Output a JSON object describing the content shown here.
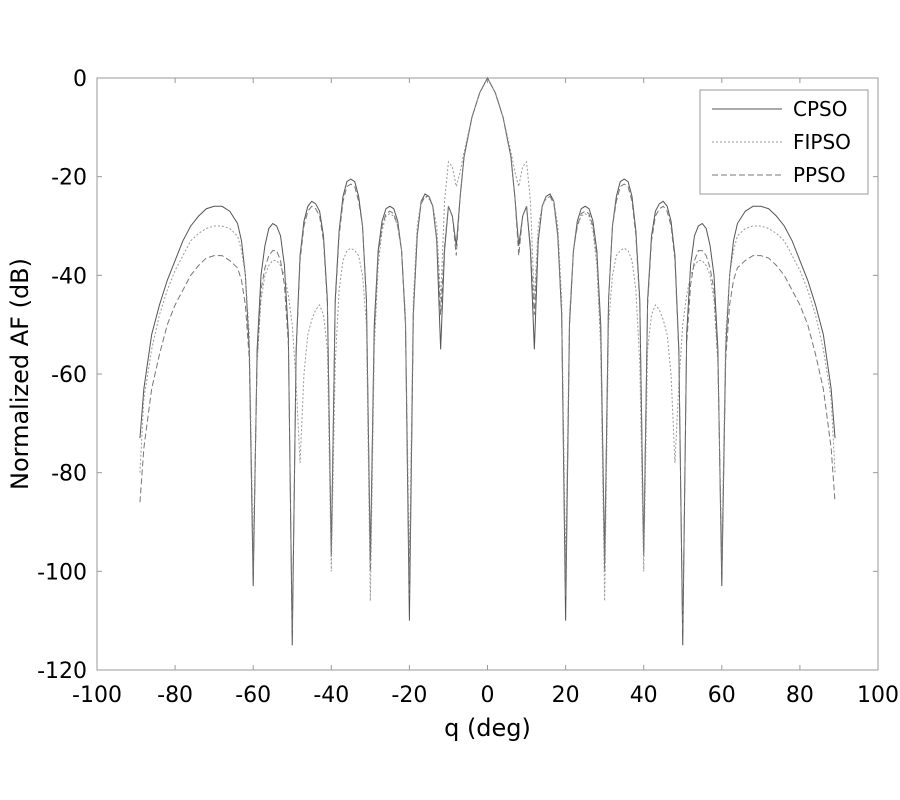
{
  "chart_data": {
    "type": "line",
    "title": "",
    "xlabel": "q (deg)",
    "ylabel": "Normalized AF (dB)",
    "xlim": [
      -100,
      100
    ],
    "ylim": [
      -120,
      0
    ],
    "xticks": [
      -100,
      -80,
      -60,
      -40,
      -20,
      0,
      20,
      40,
      60,
      80,
      100
    ],
    "yticks": [
      0,
      -20,
      -40,
      -60,
      -80,
      -100,
      -120
    ],
    "xtick_labels": [
      "-100",
      "-80",
      "-60",
      "-40",
      "-20",
      "0",
      "20",
      "40",
      "60",
      "80",
      "100"
    ],
    "ytick_labels": [
      "0",
      "-20",
      "-40",
      "-60",
      "-80",
      "-100",
      "-120"
    ],
    "grid": false,
    "legend": "top-right",
    "series": [
      {
        "name": "CPSO",
        "color": "#555555",
        "dash": "",
        "points": [
          [
            0,
            0
          ],
          [
            2,
            -3
          ],
          [
            4,
            -8
          ],
          [
            6,
            -16
          ],
          [
            7,
            -24
          ],
          [
            8,
            -34
          ],
          [
            9,
            -28
          ],
          [
            10,
            -26
          ],
          [
            11,
            -35
          ],
          [
            12,
            -55
          ],
          [
            13,
            -33
          ],
          [
            14,
            -26
          ],
          [
            15,
            -24
          ],
          [
            16,
            -23.5
          ],
          [
            17,
            -25
          ],
          [
            18,
            -32
          ],
          [
            19,
            -48
          ],
          [
            20,
            -110
          ],
          [
            21,
            -50
          ],
          [
            22,
            -35
          ],
          [
            23,
            -29
          ],
          [
            24,
            -26.5
          ],
          [
            25,
            -26
          ],
          [
            26,
            -26.5
          ],
          [
            27,
            -29
          ],
          [
            28,
            -35
          ],
          [
            29,
            -50
          ],
          [
            30,
            -98
          ],
          [
            31,
            -45
          ],
          [
            32,
            -30
          ],
          [
            33,
            -24
          ],
          [
            34,
            -21
          ],
          [
            35,
            -20.5
          ],
          [
            36,
            -21
          ],
          [
            37,
            -24
          ],
          [
            38,
            -31
          ],
          [
            39,
            -45
          ],
          [
            40,
            -97
          ],
          [
            41,
            -45
          ],
          [
            42,
            -32
          ],
          [
            43,
            -27
          ],
          [
            44,
            -25.5
          ],
          [
            45,
            -25
          ],
          [
            46,
            -26
          ],
          [
            47,
            -29
          ],
          [
            48,
            -36
          ],
          [
            49,
            -55
          ],
          [
            50,
            -115
          ],
          [
            51,
            -52
          ],
          [
            52,
            -38
          ],
          [
            53,
            -32
          ],
          [
            54,
            -30
          ],
          [
            55,
            -29.5
          ],
          [
            56,
            -30.5
          ],
          [
            57,
            -34
          ],
          [
            58,
            -40
          ],
          [
            59,
            -55
          ],
          [
            60,
            -103
          ],
          [
            61,
            -55
          ],
          [
            62,
            -40
          ],
          [
            63,
            -33
          ],
          [
            64,
            -29.5
          ],
          [
            66,
            -27
          ],
          [
            68,
            -26
          ],
          [
            70,
            -26
          ],
          [
            72,
            -26.5
          ],
          [
            74,
            -28
          ],
          [
            76,
            -30
          ],
          [
            78,
            -33
          ],
          [
            80,
            -37
          ],
          [
            82,
            -41
          ],
          [
            84,
            -46
          ],
          [
            86,
            -52
          ],
          [
            88,
            -63
          ],
          [
            89,
            -73
          ]
        ]
      },
      {
        "name": "FIPSO",
        "color": "#999999",
        "dash": "2,2",
        "points": [
          [
            0,
            0
          ],
          [
            2,
            -3
          ],
          [
            4,
            -8
          ],
          [
            6,
            -15
          ],
          [
            7,
            -19
          ],
          [
            8,
            -22
          ],
          [
            9,
            -18
          ],
          [
            10,
            -17
          ],
          [
            11,
            -25
          ],
          [
            12,
            -45
          ],
          [
            13,
            -30
          ],
          [
            14,
            -26
          ],
          [
            15,
            -24.5
          ],
          [
            16,
            -24
          ],
          [
            17,
            -25
          ],
          [
            18,
            -30
          ],
          [
            19,
            -45
          ],
          [
            20,
            -100
          ],
          [
            21,
            -48
          ],
          [
            22,
            -35
          ],
          [
            23,
            -30
          ],
          [
            24,
            -28
          ],
          [
            25,
            -27.5
          ],
          [
            26,
            -28
          ],
          [
            27,
            -31
          ],
          [
            28,
            -38
          ],
          [
            29,
            -55
          ],
          [
            30,
            -106
          ],
          [
            31,
            -50
          ],
          [
            32,
            -40
          ],
          [
            33,
            -36
          ],
          [
            34,
            -35
          ],
          [
            35,
            -34.5
          ],
          [
            36,
            -35
          ],
          [
            37,
            -37
          ],
          [
            38,
            -43
          ],
          [
            39,
            -58
          ],
          [
            40,
            -100
          ],
          [
            41,
            -55
          ],
          [
            42,
            -48
          ],
          [
            43,
            -46
          ],
          [
            44,
            -47
          ],
          [
            45,
            -49
          ],
          [
            46,
            -52
          ],
          [
            47,
            -60
          ],
          [
            48,
            -78
          ],
          [
            49,
            -62
          ],
          [
            50,
            -50
          ],
          [
            51,
            -44
          ],
          [
            52,
            -40
          ],
          [
            53,
            -38
          ],
          [
            54,
            -37
          ],
          [
            55,
            -37
          ],
          [
            56,
            -38
          ],
          [
            57,
            -40
          ],
          [
            58,
            -45
          ],
          [
            59,
            -58
          ],
          [
            60,
            -97
          ],
          [
            61,
            -52
          ],
          [
            62,
            -40
          ],
          [
            63,
            -35
          ],
          [
            64,
            -32
          ],
          [
            66,
            -30.5
          ],
          [
            68,
            -30
          ],
          [
            70,
            -30
          ],
          [
            72,
            -30.5
          ],
          [
            74,
            -31.5
          ],
          [
            76,
            -33
          ],
          [
            78,
            -36
          ],
          [
            80,
            -39
          ],
          [
            82,
            -43
          ],
          [
            84,
            -48
          ],
          [
            86,
            -55
          ],
          [
            88,
            -65
          ],
          [
            89,
            -80
          ]
        ]
      },
      {
        "name": "PPSO",
        "color": "#777777",
        "dash": "6,3",
        "points": [
          [
            0,
            0
          ],
          [
            2,
            -3
          ],
          [
            4,
            -8
          ],
          [
            6,
            -16
          ],
          [
            7,
            -24
          ],
          [
            8,
            -36
          ],
          [
            9,
            -28
          ],
          [
            10,
            -26
          ],
          [
            11,
            -34
          ],
          [
            12,
            -48
          ],
          [
            13,
            -33
          ],
          [
            14,
            -26
          ],
          [
            15,
            -24
          ],
          [
            16,
            -24
          ],
          [
            17,
            -25.5
          ],
          [
            18,
            -32
          ],
          [
            19,
            -48
          ],
          [
            20,
            -105
          ],
          [
            21,
            -50
          ],
          [
            22,
            -35
          ],
          [
            23,
            -30
          ],
          [
            24,
            -27.5
          ],
          [
            25,
            -27
          ],
          [
            26,
            -27.5
          ],
          [
            27,
            -30
          ],
          [
            28,
            -36
          ],
          [
            29,
            -52
          ],
          [
            30,
            -100
          ],
          [
            31,
            -45
          ],
          [
            32,
            -30
          ],
          [
            33,
            -25
          ],
          [
            34,
            -22
          ],
          [
            35,
            -21.5
          ],
          [
            36,
            -22
          ],
          [
            37,
            -25
          ],
          [
            38,
            -32
          ],
          [
            39,
            -46
          ],
          [
            40,
            -96
          ],
          [
            41,
            -46
          ],
          [
            42,
            -33
          ],
          [
            43,
            -28
          ],
          [
            44,
            -26.5
          ],
          [
            45,
            -26
          ],
          [
            46,
            -27
          ],
          [
            47,
            -30
          ],
          [
            48,
            -37
          ],
          [
            49,
            -56
          ],
          [
            50,
            -112
          ],
          [
            51,
            -54
          ],
          [
            52,
            -42
          ],
          [
            53,
            -37
          ],
          [
            54,
            -35
          ],
          [
            55,
            -35
          ],
          [
            56,
            -36
          ],
          [
            57,
            -38.5
          ],
          [
            58,
            -43
          ],
          [
            59,
            -57
          ],
          [
            60,
            -100
          ],
          [
            61,
            -57
          ],
          [
            62,
            -46
          ],
          [
            63,
            -41
          ],
          [
            64,
            -38.5
          ],
          [
            66,
            -37
          ],
          [
            68,
            -36
          ],
          [
            70,
            -36
          ],
          [
            72,
            -36.5
          ],
          [
            74,
            -38
          ],
          [
            76,
            -40
          ],
          [
            78,
            -43
          ],
          [
            80,
            -46
          ],
          [
            82,
            -50
          ],
          [
            84,
            -56
          ],
          [
            86,
            -63
          ],
          [
            88,
            -75
          ],
          [
            89,
            -86
          ]
        ]
      }
    ]
  }
}
